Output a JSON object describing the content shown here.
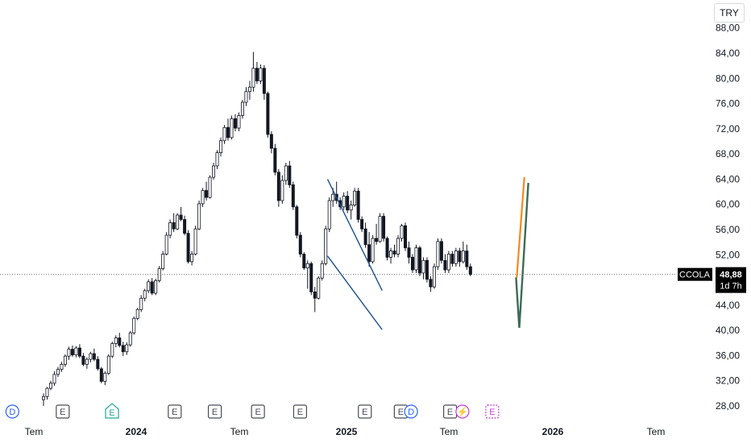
{
  "currency_label": "TRY",
  "price_label": {
    "symbol": "CCOLA",
    "price": "48,88",
    "countdown": "1d 7h"
  },
  "colors": {
    "up": "#ffffff",
    "down": "#131722",
    "wick": "#131722",
    "channel": "#1d4f91",
    "bull_path": "#f5891f",
    "alt_path": "#3d6b57",
    "axis_text": "#131722",
    "dotted": "#6b6f7a",
    "event_e": "#4a4d57",
    "event_e_future": "#c23bd4",
    "event_dividend": "#2962ff",
    "event_e_green": "#26a69a"
  },
  "chart_data": {
    "type": "candlestick",
    "ylim": [
      26,
      90
    ],
    "y_ticks": [
      "28,00",
      "32,00",
      "36,00",
      "40,00",
      "44,00",
      "48,00",
      "52,00",
      "56,00",
      "60,00",
      "64,00",
      "68,00",
      "72,00",
      "76,00",
      "80,00",
      "84,00",
      "88,00"
    ],
    "x_ticks": [
      "Tem",
      "2024",
      "Tem",
      "2025",
      "Tem",
      "2026",
      "Tem"
    ],
    "last_price": 48.88,
    "candles": [
      [
        29,
        30,
        28,
        29.5
      ],
      [
        29.5,
        31,
        29,
        30.8
      ],
      [
        30.8,
        32,
        30.5,
        31.6
      ],
      [
        31.6,
        33.5,
        31.2,
        33
      ],
      [
        33,
        34.2,
        32.6,
        33.8
      ],
      [
        33.8,
        35,
        33.4,
        34.6
      ],
      [
        34.6,
        36.2,
        34.2,
        35.9
      ],
      [
        35.9,
        37.4,
        35.3,
        37
      ],
      [
        37,
        37.6,
        35.8,
        36.1
      ],
      [
        36.1,
        37.5,
        35.7,
        37.2
      ],
      [
        37.2,
        37.8,
        35.6,
        35.9
      ],
      [
        35.9,
        36.4,
        34.3,
        34.6
      ],
      [
        34.6,
        35.7,
        33.9,
        35.4
      ],
      [
        35.4,
        36.6,
        34.9,
        36.3
      ],
      [
        36.3,
        37.1,
        35.1,
        35.4
      ],
      [
        35.4,
        35.9,
        33.6,
        33.9
      ],
      [
        33.9,
        34.2,
        31.6,
        31.9
      ],
      [
        31.9,
        33.5,
        31.3,
        33.2
      ],
      [
        33.2,
        36.2,
        32.9,
        35.9
      ],
      [
        35.9,
        38.2,
        35.6,
        37.9
      ],
      [
        37.9,
        39.2,
        37.3,
        38.8
      ],
      [
        38.8,
        39.6,
        37.3,
        37.6
      ],
      [
        37.6,
        38.2,
        35.9,
        36.6
      ],
      [
        36.6,
        38.1,
        36.1,
        37.7
      ],
      [
        37.7,
        39.9,
        37.4,
        39.6
      ],
      [
        39.6,
        42.2,
        39.3,
        41.9
      ],
      [
        41.9,
        43.6,
        41.6,
        43.3
      ],
      [
        43.3,
        45.6,
        42.9,
        45.1
      ],
      [
        45.1,
        46.6,
        44.6,
        46.3
      ],
      [
        46.3,
        48.1,
        45.9,
        47.7
      ],
      [
        47.7,
        48.3,
        45.6,
        45.9
      ],
      [
        45.9,
        48.2,
        45.6,
        47.9
      ],
      [
        47.9,
        50.2,
        47.6,
        49.8
      ],
      [
        49.8,
        52.6,
        49.5,
        52.1
      ],
      [
        52.1,
        55.6,
        51.9,
        55.1
      ],
      [
        55.1,
        57.6,
        54.6,
        57.1
      ],
      [
        57.1,
        58.6,
        55.6,
        56.1
      ],
      [
        56.1,
        58.6,
        55.9,
        58.3
      ],
      [
        58.3,
        59.6,
        57.3,
        57.6
      ],
      [
        57.6,
        58.2,
        55.1,
        55.4
      ],
      [
        55.4,
        55.9,
        50.6,
        50.9
      ],
      [
        50.9,
        52.6,
        50.3,
        52.1
      ],
      [
        52.1,
        56.6,
        51.9,
        56.1
      ],
      [
        56.1,
        60.6,
        55.9,
        60.1
      ],
      [
        60.1,
        62.6,
        59.6,
        62.2
      ],
      [
        62.2,
        63.6,
        60.6,
        61.1
      ],
      [
        61.1,
        64.6,
        60.9,
        64.3
      ],
      [
        64.3,
        66.6,
        63.9,
        66.1
      ],
      [
        66.1,
        68.6,
        65.6,
        68.2
      ],
      [
        68.2,
        70.6,
        67.6,
        70.1
      ],
      [
        70.1,
        72.6,
        69.6,
        72.2
      ],
      [
        72.2,
        73.6,
        70.1,
        70.6
      ],
      [
        70.6,
        74.1,
        70.3,
        73.6
      ],
      [
        73.6,
        74.3,
        71.6,
        72.1
      ],
      [
        72.1,
        74.6,
        71.6,
        74.1
      ],
      [
        74.1,
        76.6,
        73.6,
        76.2
      ],
      [
        76.2,
        78.6,
        75.6,
        77.9
      ],
      [
        77.9,
        79.6,
        76.6,
        78.6
      ],
      [
        78.6,
        84.2,
        77.9,
        81.6
      ],
      [
        81.6,
        82.6,
        79.1,
        79.6
      ],
      [
        79.6,
        82.2,
        79.1,
        81.6
      ],
      [
        81.6,
        82.1,
        76.6,
        77.6
      ],
      [
        77.6,
        77.9,
        70.6,
        71.1
      ],
      [
        71.1,
        71.6,
        68.1,
        68.9
      ],
      [
        68.9,
        69.6,
        64.6,
        65.1
      ],
      [
        65.1,
        65.6,
        59.6,
        60.6
      ],
      [
        60.6,
        64.6,
        60.1,
        63.8
      ],
      [
        63.8,
        66.6,
        63.1,
        66.1
      ],
      [
        66.1,
        66.9,
        62.6,
        63.1
      ],
      [
        63.1,
        63.6,
        59.1,
        59.6
      ],
      [
        59.6,
        59.9,
        54.6,
        55.1
      ],
      [
        55.1,
        55.6,
        51.6,
        52.1
      ],
      [
        52.1,
        52.4,
        49.6,
        49.9
      ],
      [
        49.9,
        51.1,
        46.6,
        50.6
      ],
      [
        50.6,
        50.9,
        45.6,
        46.1
      ],
      [
        46.1,
        46.9,
        42.9,
        45.1
      ],
      [
        45.1,
        48.6,
        44.9,
        48.3
      ],
      [
        48.3,
        51.1,
        47.9,
        50.6
      ],
      [
        50.6,
        56.6,
        50.3,
        56.1
      ],
      [
        56.1,
        61.1,
        55.6,
        60.6
      ],
      [
        60.6,
        62.6,
        59.6,
        61.6
      ],
      [
        61.6,
        63.6,
        60.1,
        60.6
      ],
      [
        60.6,
        61.1,
        59.1,
        59.6
      ],
      [
        59.6,
        61.9,
        59.1,
        61.3
      ],
      [
        61.3,
        62.1,
        58.6,
        59.1
      ],
      [
        59.1,
        60.6,
        57.6,
        59.9
      ],
      [
        59.9,
        62.6,
        59.6,
        62.1
      ],
      [
        62.1,
        62.6,
        57.1,
        57.6
      ],
      [
        57.6,
        58.1,
        55.6,
        56.1
      ],
      [
        56.1,
        57.1,
        53.1,
        53.6
      ],
      [
        53.6,
        55.6,
        50.1,
        50.9
      ],
      [
        50.9,
        55.1,
        50.6,
        54.6
      ],
      [
        54.6,
        56.9,
        53.6,
        54.1
      ],
      [
        54.1,
        58.6,
        53.9,
        58.1
      ],
      [
        58.1,
        58.6,
        54.1,
        54.6
      ],
      [
        54.6,
        54.9,
        51.1,
        51.6
      ],
      [
        51.6,
        53.1,
        50.6,
        52.6
      ],
      [
        52.6,
        53.6,
        51.6,
        52.1
      ],
      [
        52.1,
        55.1,
        51.6,
        54.6
      ],
      [
        54.6,
        56.9,
        54.1,
        56.6
      ],
      [
        56.6,
        57.1,
        52.6,
        53.1
      ],
      [
        53.1,
        54.1,
        50.6,
        51.6
      ],
      [
        51.6,
        52.1,
        49.1,
        49.6
      ],
      [
        49.6,
        53.6,
        49.1,
        53.1
      ],
      [
        53.1,
        53.4,
        48.6,
        49.1
      ],
      [
        49.1,
        51.6,
        48.1,
        51.1
      ],
      [
        51.1,
        51.6,
        47.6,
        48.1
      ],
      [
        48.1,
        48.6,
        46.1,
        46.9
      ],
      [
        46.9,
        50.6,
        46.6,
        50.1
      ],
      [
        50.1,
        54.6,
        49.6,
        54.1
      ],
      [
        54.1,
        54.6,
        50.6,
        51.1
      ],
      [
        51.1,
        52.1,
        49.1,
        49.6
      ],
      [
        49.6,
        52.6,
        49.1,
        52.1
      ],
      [
        52.1,
        52.6,
        50.1,
        50.6
      ],
      [
        50.6,
        53.1,
        50.1,
        52.6
      ],
      [
        52.6,
        53.1,
        50.1,
        50.9
      ],
      [
        50.9,
        54.1,
        50.6,
        52.6
      ],
      [
        52.6,
        53.6,
        49.6,
        50.1
      ],
      [
        50.1,
        50.6,
        48.6,
        48.88
      ]
    ],
    "channel": {
      "upper": [
        [
          28.0,
          64.0
        ],
        [
          43.1,
          46.3
        ]
      ],
      "lower": [
        [
          28.0,
          51.8
        ],
        [
          43.1,
          40.1
        ]
      ]
    },
    "projections": {
      "bullish": [
        [
          42.4,
          48.4
        ],
        [
          44.5,
          64.3
        ]
      ],
      "alternative": [
        [
          42.2,
          48.4
        ],
        [
          43.1,
          40.4
        ],
        [
          45.6,
          63.4
        ]
      ]
    },
    "events": [
      {
        "type": "D",
        "x": 0.5
      },
      {
        "type": "E",
        "x": 5.4
      },
      {
        "type": "E-green",
        "x": 10.2
      },
      {
        "type": "E",
        "x": 16.3
      },
      {
        "type": "E",
        "x": 20.2
      },
      {
        "type": "E",
        "x": 24.4
      },
      {
        "type": "E",
        "x": 28.5
      },
      {
        "type": "E",
        "x": 34.8
      },
      {
        "type": "E",
        "x": 38.3
      },
      {
        "type": "D",
        "x": 39.3
      },
      {
        "type": "E",
        "x": 43.1
      },
      {
        "type": "div",
        "x": 44.3
      },
      {
        "type": "E-future",
        "x": 47.2
      }
    ]
  }
}
